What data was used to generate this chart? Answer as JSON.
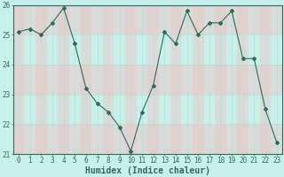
{
  "x": [
    0,
    1,
    2,
    3,
    4,
    5,
    6,
    7,
    8,
    9,
    10,
    11,
    12,
    13,
    14,
    15,
    16,
    17,
    18,
    19,
    20,
    21,
    22,
    23
  ],
  "y": [
    25.1,
    25.2,
    25.0,
    25.4,
    25.9,
    24.7,
    23.2,
    22.7,
    22.4,
    21.9,
    21.1,
    22.4,
    23.3,
    25.1,
    24.7,
    25.8,
    25.0,
    25.4,
    25.4,
    25.8,
    24.2,
    24.2,
    22.5,
    21.4
  ],
  "xlabel": "Humidex (Indice chaleur)",
  "ylim": [
    21,
    26
  ],
  "xlim": [
    -0.5,
    23.5
  ],
  "yticks": [
    21,
    22,
    23,
    24,
    25,
    26
  ],
  "xticks": [
    0,
    1,
    2,
    3,
    4,
    5,
    6,
    7,
    8,
    9,
    10,
    11,
    12,
    13,
    14,
    15,
    16,
    17,
    18,
    19,
    20,
    21,
    22,
    23
  ],
  "line_color": "#2e6b5e",
  "marker_color": "#2e6b5e",
  "bg_color": "#c8f0ea",
  "plot_bg_color": "#c8f0ea",
  "grid_color_v": "#b8ddd8",
  "grid_color_h": "#b8ddd8",
  "stripe_color": "#e8c8c8",
  "bottom_bar_color": "#5a8a80",
  "axis_color": "#2e6b5e",
  "tick_label_color": "#2e6b5e",
  "xlabel_color": "#2e6b5e",
  "xlabel_fontsize": 7,
  "tick_fontsize": 5.5
}
